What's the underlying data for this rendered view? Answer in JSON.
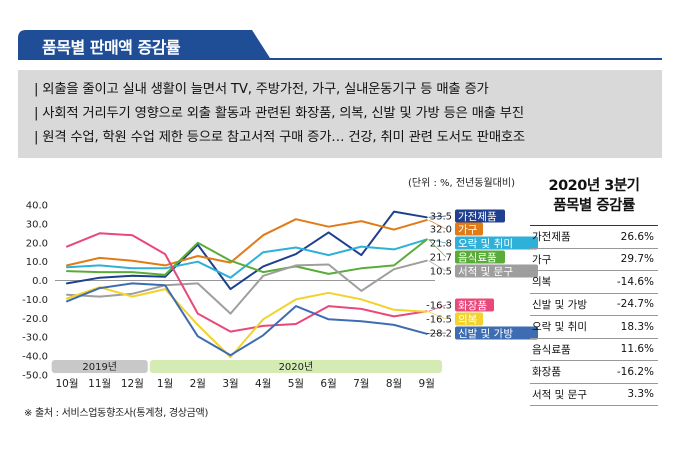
{
  "page": {
    "title": "품목별 판매액 증감률",
    "summary": [
      "| 외출을 줄이고 실내 생활이 늘면서 TV, 주방가전, 가구, 실내운동기구 등 매출 증가",
      "| 사회적 거리두기 영향으로 외출 활동과 관련된 화장품, 의복, 신발 및 가방 등은 매출 부진",
      "| 원격 수업, 학원 수업 제한 등으로 참고서적 구매 증가… 건강, 취미 관련 도서도 판매호조"
    ],
    "unit_note": "(단위 : %, 전년동월대비)",
    "source_note": "※ 출처 : 서비스업동향조사(통계청, 경상금액)"
  },
  "chart_data": {
    "type": "line",
    "x": [
      "10월",
      "11월",
      "12월",
      "1월",
      "2월",
      "3월",
      "4월",
      "5월",
      "6월",
      "7월",
      "8월",
      "9월"
    ],
    "year_groups": [
      {
        "label": "2019년",
        "start": 0,
        "end": 2,
        "color": "#c8c8c8"
      },
      {
        "label": "2020년",
        "start": 3,
        "end": 11,
        "color": "#d4ecb4"
      }
    ],
    "ylim": [
      -50,
      40
    ],
    "yticks": [
      "40.0",
      "30.0",
      "20.0",
      "10.0",
      "0.0",
      "-10.0",
      "-20.0",
      "-30.0",
      "-40.0",
      "-50.0"
    ],
    "grid": false,
    "series": [
      {
        "name": "가전제품",
        "color": "#1f3f8f",
        "end_label": "33.5",
        "values": [
          -1.5,
          1.5,
          2.5,
          2.0,
          19.0,
          -4.5,
          7.5,
          14.0,
          25.5,
          13.5,
          36.5,
          33.5
        ]
      },
      {
        "name": "가구",
        "color": "#e07b18",
        "end_label": "32.0",
        "values": [
          8.0,
          12.0,
          10.5,
          8.0,
          13.0,
          9.5,
          24.0,
          32.5,
          28.5,
          31.5,
          27.0,
          32.0
        ]
      },
      {
        "name": "오락 및 취미",
        "color": "#2fb0d8",
        "end_label": "21.8",
        "values": [
          7.0,
          8.0,
          6.5,
          6.5,
          10.0,
          1.5,
          15.0,
          17.5,
          13.5,
          18.0,
          16.5,
          21.8
        ]
      },
      {
        "name": "음식료품",
        "color": "#5aac3a",
        "end_label": "21.7",
        "values": [
          5.0,
          4.5,
          4.5,
          3.0,
          20.0,
          10.5,
          4.5,
          7.5,
          3.5,
          6.5,
          8.0,
          21.7
        ]
      },
      {
        "name": "서적 및 문구",
        "color": "#9e9e9e",
        "end_label": "10.5",
        "values": [
          -7.5,
          -8.5,
          -7.0,
          -2.5,
          -1.5,
          -17.5,
          2.5,
          8.0,
          8.5,
          -5.5,
          6.0,
          10.5
        ]
      },
      {
        "name": "화장품",
        "color": "#e8487a",
        "end_label": "-16.3",
        "values": [
          18.0,
          25.0,
          24.0,
          14.0,
          -17.5,
          -27.0,
          -24.0,
          -23.0,
          -13.5,
          -15.0,
          -19.0,
          -16.3
        ]
      },
      {
        "name": "의복",
        "color": "#f2d22c",
        "end_label": "-16.5",
        "values": [
          -9.5,
          -3.5,
          -8.5,
          -4.5,
          -23.5,
          -40.5,
          -20.5,
          -10.0,
          -6.5,
          -10.0,
          -15.5,
          -16.5
        ]
      },
      {
        "name": "신발 및 가방",
        "color": "#3d6cb3",
        "end_label": "-28.2",
        "values": [
          -11.0,
          -4.0,
          -1.5,
          -2.5,
          -29.5,
          -39.5,
          -29.0,
          -13.5,
          -20.5,
          -21.5,
          -23.5,
          -28.2
        ]
      }
    ]
  },
  "side_table": {
    "title_line1": "2020년 3분기",
    "title_line2": "품목별 증감률",
    "rows": [
      {
        "name": "가전제품",
        "value": "26.6%"
      },
      {
        "name": "가구",
        "value": "29.7%"
      },
      {
        "name": "의복",
        "value": "-14.6%"
      },
      {
        "name": "신발 및 가방",
        "value": "-24.7%"
      },
      {
        "name": "오락 및 취미",
        "value": "18.3%"
      },
      {
        "name": "음식료품",
        "value": "11.6%"
      },
      {
        "name": "화장품",
        "value": "-16.2%"
      },
      {
        "name": "서적 및 문구",
        "value": "3.3%"
      }
    ]
  }
}
